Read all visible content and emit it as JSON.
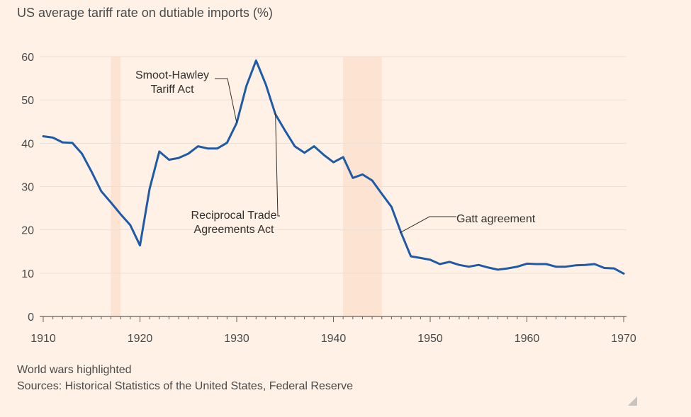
{
  "chart_data": {
    "type": "line",
    "title": "US average tariff rate on dutiable imports (%)",
    "xlabel": "",
    "ylabel": "",
    "xlim": [
      1910,
      1970
    ],
    "ylim": [
      0,
      60
    ],
    "x_ticks": [
      1910,
      1920,
      1930,
      1940,
      1950,
      1960,
      1970
    ],
    "y_ticks": [
      0,
      10,
      20,
      30,
      40,
      50,
      60
    ],
    "grid": "horizontal",
    "series_color": "#1f5aa6",
    "highlight_color": "#fde3d2",
    "highlights": [
      {
        "from": 1917,
        "to": 1918
      },
      {
        "from": 1941,
        "to": 1945
      }
    ],
    "series": [
      {
        "name": "",
        "x": [
          1910,
          1911,
          1912,
          1913,
          1914,
          1915,
          1916,
          1917,
          1918,
          1919,
          1920,
          1921,
          1922,
          1923,
          1924,
          1925,
          1926,
          1927,
          1928,
          1929,
          1930,
          1931,
          1932,
          1933,
          1934,
          1935,
          1936,
          1937,
          1938,
          1939,
          1940,
          1941,
          1942,
          1943,
          1944,
          1945,
          1946,
          1947,
          1948,
          1949,
          1950,
          1951,
          1952,
          1953,
          1954,
          1955,
          1956,
          1957,
          1958,
          1959,
          1960,
          1961,
          1962,
          1963,
          1964,
          1965,
          1966,
          1967,
          1968,
          1969,
          1970
        ],
        "values": [
          41.6,
          41.3,
          40.2,
          40.1,
          37.6,
          33.4,
          28.9,
          26.3,
          23.6,
          21.1,
          16.4,
          29.5,
          38.1,
          36.2,
          36.6,
          37.6,
          39.3,
          38.8,
          38.8,
          40.1,
          44.7,
          53.2,
          59.1,
          53.6,
          46.7,
          42.9,
          39.3,
          37.8,
          39.3,
          37.3,
          35.6,
          36.8,
          32.0,
          32.8,
          31.4,
          28.3,
          25.3,
          19.3,
          13.9,
          13.5,
          13.1,
          12.1,
          12.6,
          11.9,
          11.5,
          11.9,
          11.3,
          10.8,
          11.1,
          11.5,
          12.2,
          12.1,
          12.1,
          11.5,
          11.5,
          11.8,
          11.9,
          12.1,
          11.2,
          11.1,
          9.9
        ]
      }
    ],
    "annotations": [
      {
        "lines": [
          "Smoot-Hawley",
          "Tariff Act"
        ],
        "x": 1930
      },
      {
        "lines": [
          "Reciprocal Trade",
          "Agreements Act"
        ],
        "x": 1934
      },
      {
        "lines": [
          "Gatt agreement"
        ],
        "x": 1947
      }
    ]
  },
  "footer": {
    "note": "World wars highlighted",
    "sources": "Sources: Historical Statistics of the United States, Federal Reserve"
  }
}
